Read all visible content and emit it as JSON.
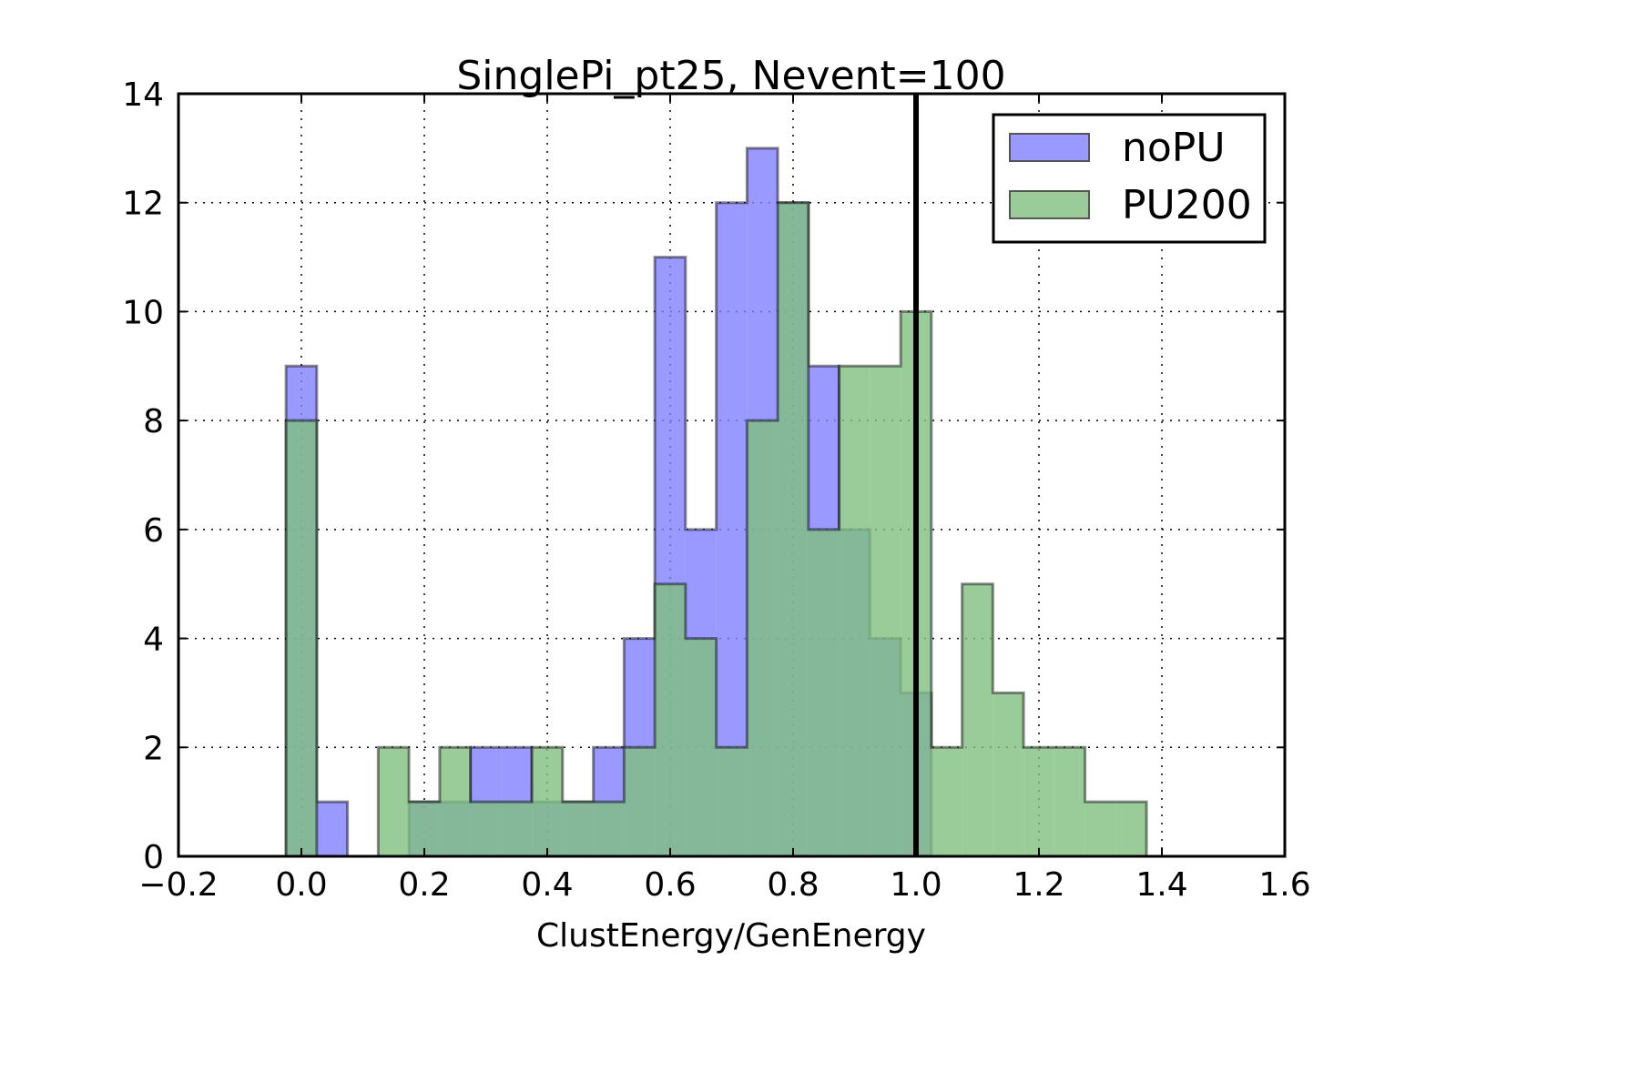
{
  "chart_data": {
    "type": "bar",
    "subtype": "step-histogram-overlay",
    "title": "SinglePi_pt25, Nevent=100",
    "xlabel": "ClustEnergy/GenEnergy",
    "ylabel": "",
    "xlim": [
      -0.2,
      1.6
    ],
    "ylim": [
      0,
      14
    ],
    "xticks": [
      -0.2,
      0.0,
      0.2,
      0.4,
      0.6,
      0.8,
      1.0,
      1.2,
      1.4,
      1.6
    ],
    "xtick_labels": [
      "−0.2",
      "0.0",
      "0.2",
      "0.4",
      "0.6",
      "0.8",
      "1.0",
      "1.2",
      "1.4",
      "1.6"
    ],
    "yticks": [
      0,
      2,
      4,
      6,
      8,
      10,
      12,
      14
    ],
    "ytick_labels": [
      "0",
      "2",
      "4",
      "6",
      "8",
      "10",
      "12",
      "14"
    ],
    "grid": true,
    "legend_position": "top-right",
    "bin_edges": [
      -0.025,
      0.025,
      0.075,
      0.125,
      0.175,
      0.225,
      0.275,
      0.325,
      0.375,
      0.425,
      0.475,
      0.525,
      0.575,
      0.625,
      0.675,
      0.725,
      0.775,
      0.825,
      0.875,
      0.925,
      0.975,
      1.025,
      1.075,
      1.125,
      1.175,
      1.225,
      1.275,
      1.325,
      1.375
    ],
    "series": [
      {
        "name": "noPU",
        "color": "#7f7fff",
        "values": [
          9,
          1,
          0,
          0,
          1,
          1,
          2,
          2,
          1,
          1,
          2,
          4,
          11,
          6,
          12,
          13,
          12,
          9,
          6,
          4,
          3,
          0,
          0,
          0,
          0,
          0,
          0,
          0
        ]
      },
      {
        "name": "PU200",
        "color": "#7fbf7f",
        "values": [
          8,
          0,
          0,
          2,
          1,
          2,
          1,
          1,
          2,
          1,
          1,
          2,
          5,
          4,
          2,
          8,
          12,
          6,
          9,
          9,
          10,
          2,
          5,
          3,
          2,
          2,
          1,
          1
        ]
      }
    ],
    "reference_line": {
      "x": 1.0,
      "color": "#000000"
    }
  }
}
